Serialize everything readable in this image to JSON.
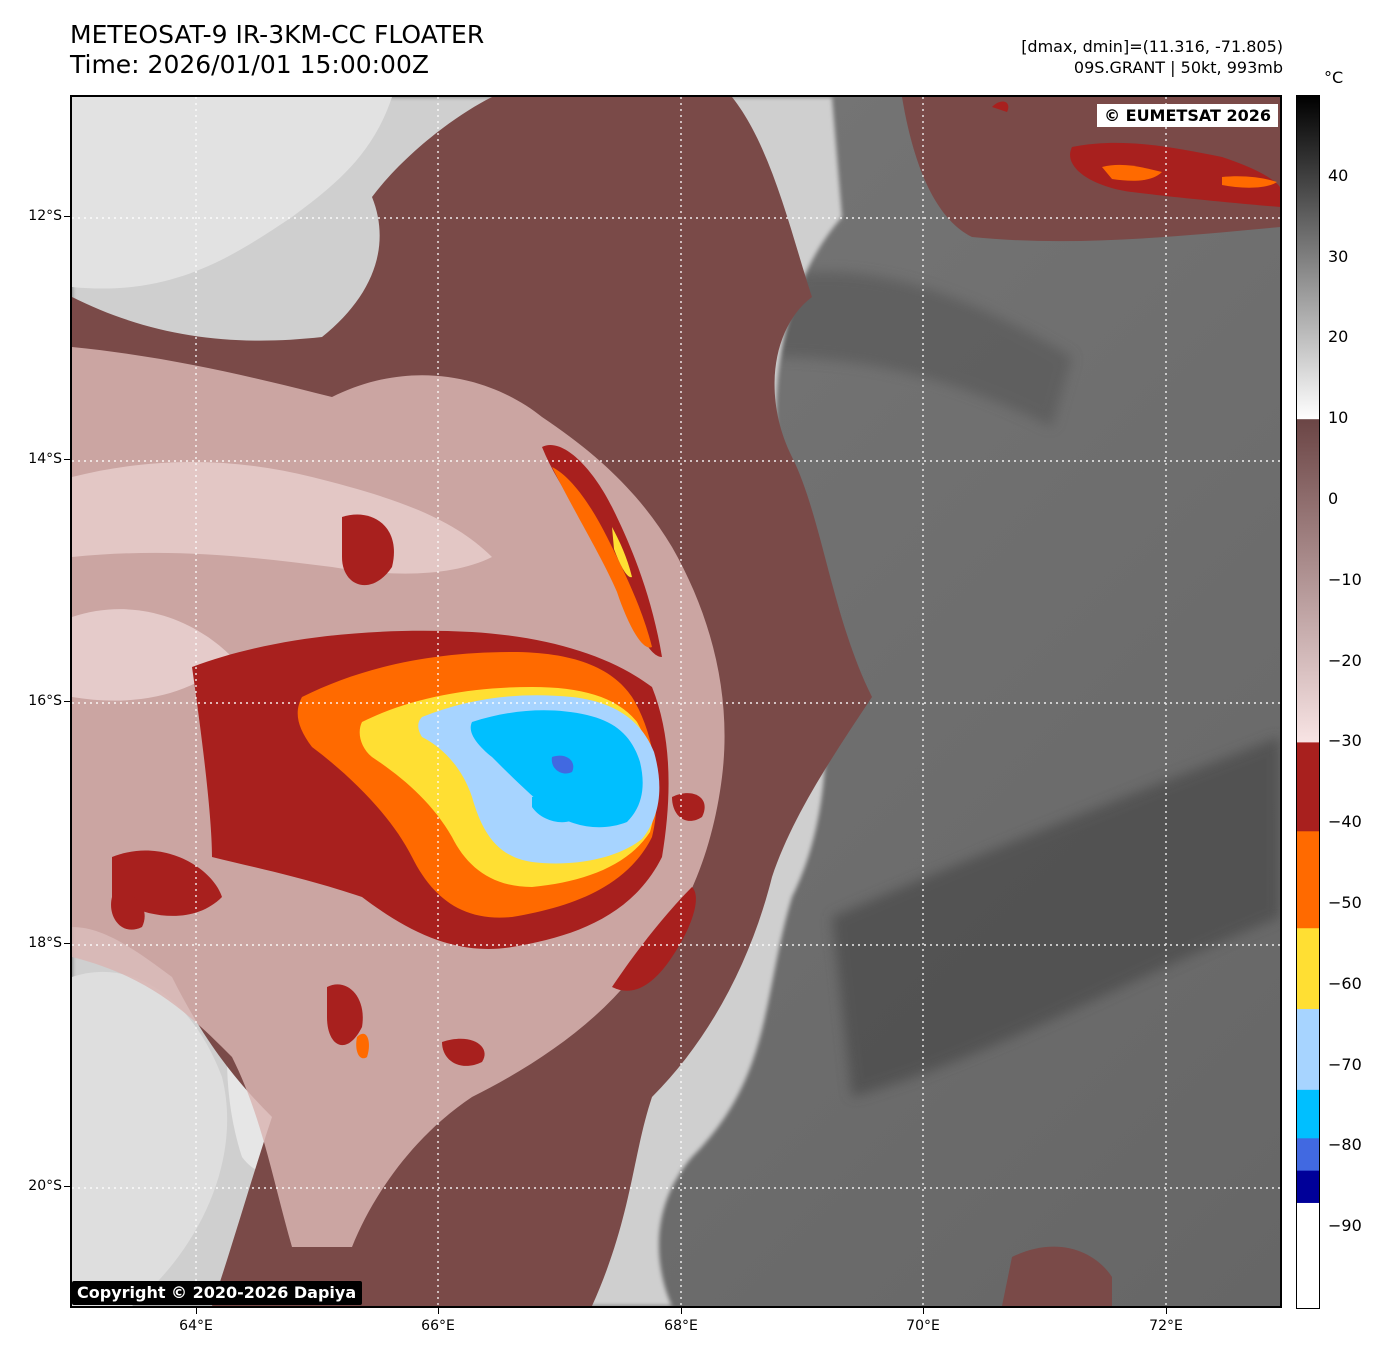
{
  "header": {
    "title_line1": "METEOSAT-9 IR-3KM-CC FLOATER",
    "title_line2": "Time: 2026/01/01 15:00:00Z",
    "dmax_dmin": "[dmax, dmin]=(11.316, -71.805)",
    "storm_info": "09S.GRANT | 50kt, 993mb"
  },
  "credits": {
    "eumetsat": "© EUMETSAT 2026",
    "dapiya": "Copyright © 2020-2026 Dapiya"
  },
  "map": {
    "lat_labels": [
      "12°S",
      "14°S",
      "16°S",
      "18°S",
      "20°S"
    ],
    "lon_labels": [
      "64°E",
      "66°E",
      "68°E",
      "70°E",
      "72°E"
    ],
    "gridlines": "dotted white"
  },
  "colorbar": {
    "unit": "°C",
    "tick_labels": [
      "40",
      "30",
      "20",
      "10",
      "0",
      "−10",
      "−20",
      "−30",
      "−40",
      "−50",
      "−60",
      "−70",
      "−80",
      "−90"
    ],
    "range": [
      -100,
      50
    ],
    "bands": [
      {
        "from": 50,
        "to": 10,
        "kind": "gradient",
        "colors": [
          "#000000",
          "#ffffff"
        ]
      },
      {
        "from": 10,
        "to": -30,
        "kind": "gradient",
        "colors": [
          "#6b4545",
          "#f8e4e4"
        ]
      },
      {
        "from": -30,
        "to": -41,
        "color": "#a8201e"
      },
      {
        "from": -41,
        "to": -53,
        "color": "#ff6a00"
      },
      {
        "from": -53,
        "to": -63,
        "color": "#ffdf33"
      },
      {
        "from": -63,
        "to": -73,
        "color": "#a7d4ff"
      },
      {
        "from": -73,
        "to": -79,
        "color": "#00bfff"
      },
      {
        "from": -79,
        "to": -83,
        "color": "#4169e1"
      },
      {
        "from": -83,
        "to": -87,
        "color": "#000099"
      },
      {
        "from": -87,
        "to": -100,
        "color": "#ffffff"
      }
    ]
  }
}
